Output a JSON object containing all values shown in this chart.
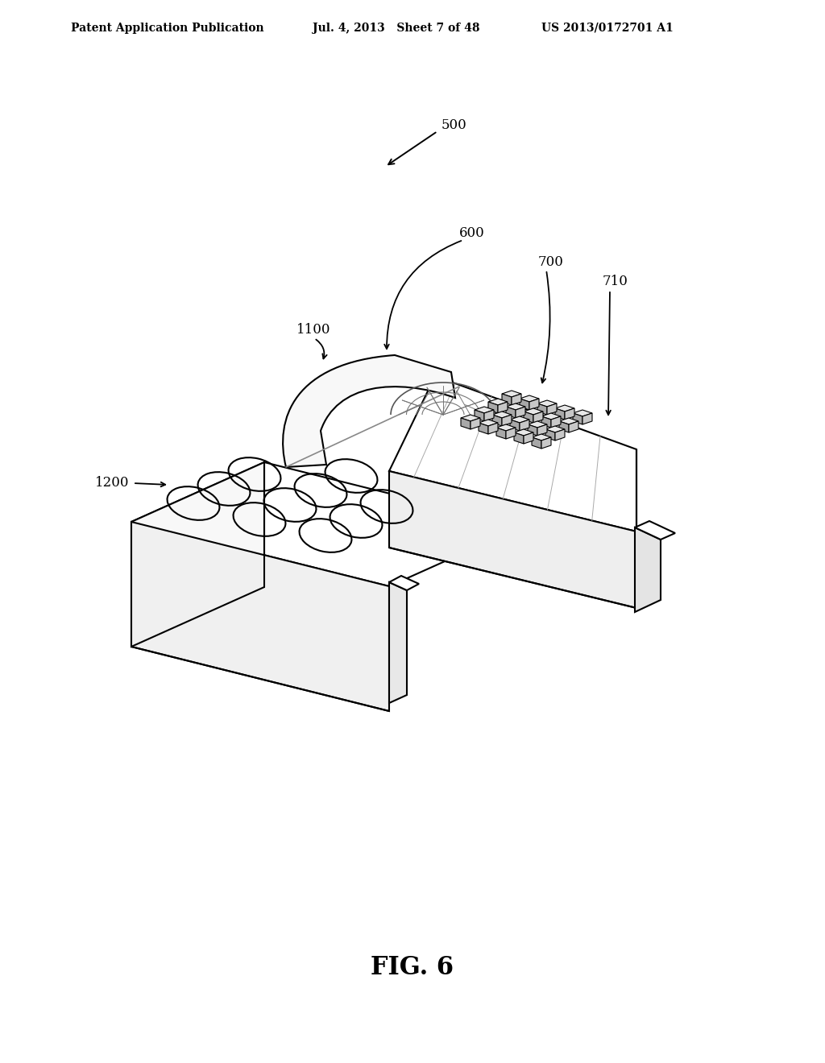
{
  "bg_color": "#ffffff",
  "header_left": "Patent Application Publication",
  "header_mid": "Jul. 4, 2013   Sheet 7 of 48",
  "header_right": "US 2013/0172701 A1",
  "figure_label": "FIG. 6",
  "label_500": "500",
  "label_600": "600",
  "label_700": "700",
  "label_710": "710",
  "label_1100": "1100",
  "label_1200": "1200",
  "line_color": "#000000",
  "face_color_top": "#ffffff",
  "face_color_front": "#f0f0f0",
  "face_color_right": "#e0e0e0",
  "cube_top": "#e8e8e8",
  "cube_left": "#a8a8a8",
  "cube_right": "#c8c8c8"
}
